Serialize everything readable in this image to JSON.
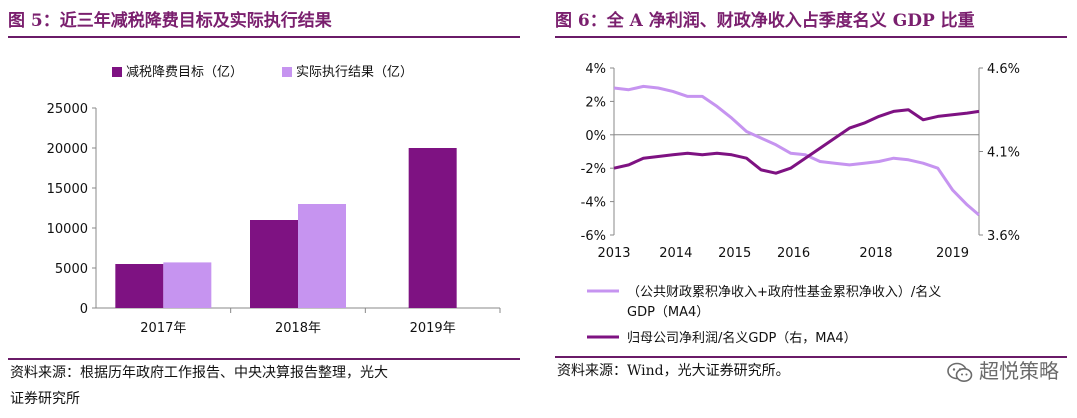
{
  "left": {
    "title": "图 5：近三年减税降费目标及实际执行结果",
    "source": [
      "资料来源：根据历年政府工作报告、中央决算报告整理，光大",
      "证券研究所"
    ],
    "colors": {
      "target": "#7e1282",
      "actual": "#c694f0"
    }
  },
  "right": {
    "title": "图 6：全 A 净利润、财政净收入占季度名义 GDP 比重",
    "source": "资料来源：Wind，光大证券研究所。",
    "colors": {
      "fiscal": "#c694f0",
      "profit": "#7e1282"
    }
  },
  "watermark": {
    "text": "超悦策略",
    "icon": "wechat-icon"
  },
  "chart_data": [
    {
      "type": "bar",
      "categories": [
        "2017年",
        "2018年",
        "2019年"
      ],
      "series": [
        {
          "name": "减税降费目标（亿）",
          "values": [
            5500,
            11000,
            20000
          ]
        },
        {
          "name": "实际执行结果（亿）",
          "values": [
            5700,
            13000,
            null
          ]
        }
      ],
      "ylim": [
        0,
        25000
      ],
      "yticks": [
        "0",
        "5000",
        "10000",
        "15000",
        "20000",
        "25000"
      ],
      "legend": "top",
      "grid": false
    },
    {
      "type": "line",
      "xticks": [
        "2013",
        "2014",
        "2015",
        "2016",
        "2018",
        "2019"
      ],
      "xrange": [
        2013.0,
        2019.2
      ],
      "y_left": {
        "range": [
          -6,
          4
        ],
        "ticks": [
          "-6%",
          "-4%",
          "-2%",
          "0%",
          "2%",
          "4%"
        ]
      },
      "y_right": {
        "range": [
          3.6,
          4.6
        ],
        "ticks": [
          "3.6%",
          "4.1%",
          "4.6%"
        ]
      },
      "series": [
        {
          "name": "（公共财政累积净收入+政府性基金累积净收入）/名义GDP（MA4）",
          "axis": "left",
          "x": [
            2013.0,
            2013.25,
            2013.5,
            2013.75,
            2014.0,
            2014.25,
            2014.5,
            2014.75,
            2015.0,
            2015.25,
            2015.5,
            2015.75,
            2016.0,
            2016.25,
            2016.5,
            2016.75,
            2017.0,
            2017.25,
            2017.5,
            2017.75,
            2018.0,
            2018.25,
            2018.5,
            2018.75,
            2019.0,
            2019.2
          ],
          "y": [
            2.8,
            2.7,
            2.9,
            2.8,
            2.6,
            2.3,
            2.3,
            1.7,
            1.0,
            0.2,
            -0.2,
            -0.6,
            -1.1,
            -1.2,
            -1.6,
            -1.7,
            -1.8,
            -1.7,
            -1.6,
            -1.4,
            -1.5,
            -1.7,
            -2.0,
            -3.3,
            -4.2,
            -4.8
          ]
        },
        {
          "name": "归母公司净利润/名义GDP（右，MA4）",
          "axis": "right",
          "x": [
            2013.0,
            2013.25,
            2013.5,
            2013.75,
            2014.0,
            2014.25,
            2014.5,
            2014.75,
            2015.0,
            2015.25,
            2015.5,
            2015.75,
            2016.0,
            2016.25,
            2016.5,
            2016.75,
            2017.0,
            2017.25,
            2017.5,
            2017.75,
            2018.0,
            2018.25,
            2018.5,
            2018.75,
            2019.0,
            2019.2
          ],
          "y": [
            4.0,
            4.02,
            4.06,
            4.07,
            4.08,
            4.09,
            4.08,
            4.09,
            4.08,
            4.06,
            3.99,
            3.97,
            4.0,
            4.06,
            4.12,
            4.18,
            4.24,
            4.27,
            4.31,
            4.34,
            4.35,
            4.29,
            4.31,
            4.32,
            4.33,
            4.34
          ]
        }
      ],
      "legend": "bottom"
    }
  ]
}
